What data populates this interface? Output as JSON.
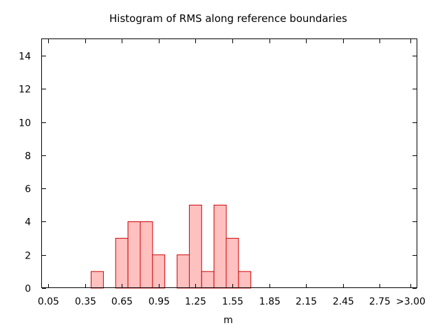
{
  "chart_data": {
    "type": "bar",
    "title": "Histogram of RMS along reference boundaries",
    "xlabel": "m",
    "ylabel": "",
    "ylim": [
      0,
      15
    ],
    "xlim": [
      0.0,
      3.05
    ],
    "y_ticks": [
      0,
      2,
      4,
      6,
      8,
      10,
      12,
      14
    ],
    "x_ticks": [
      {
        "value": 0.05,
        "label": "0.05"
      },
      {
        "value": 0.35,
        "label": "0.35"
      },
      {
        "value": 0.65,
        "label": "0.65"
      },
      {
        "value": 0.95,
        "label": "0.95"
      },
      {
        "value": 1.25,
        "label": "1.25"
      },
      {
        "value": 1.55,
        "label": "1.55"
      },
      {
        "value": 1.85,
        "label": "1.85"
      },
      {
        "value": 2.15,
        "label": "2.15"
      },
      {
        "value": 2.45,
        "label": "2.45"
      },
      {
        "value": 2.75,
        "label": "2.75"
      },
      {
        "value": 3.0,
        "label": ">3.00"
      }
    ],
    "bin_width": 0.1,
    "bins": [
      {
        "center": 0.45,
        "count": 1
      },
      {
        "center": 0.65,
        "count": 3
      },
      {
        "center": 0.75,
        "count": 4
      },
      {
        "center": 0.85,
        "count": 4
      },
      {
        "center": 0.95,
        "count": 2
      },
      {
        "center": 1.15,
        "count": 2
      },
      {
        "center": 1.25,
        "count": 5
      },
      {
        "center": 1.35,
        "count": 1
      },
      {
        "center": 1.45,
        "count": 5
      },
      {
        "center": 1.55,
        "count": 3
      },
      {
        "center": 1.65,
        "count": 1
      }
    ],
    "colors": {
      "bar_fill": "#ffc0c0",
      "bar_stroke": "#cc0000"
    },
    "grid": false
  }
}
